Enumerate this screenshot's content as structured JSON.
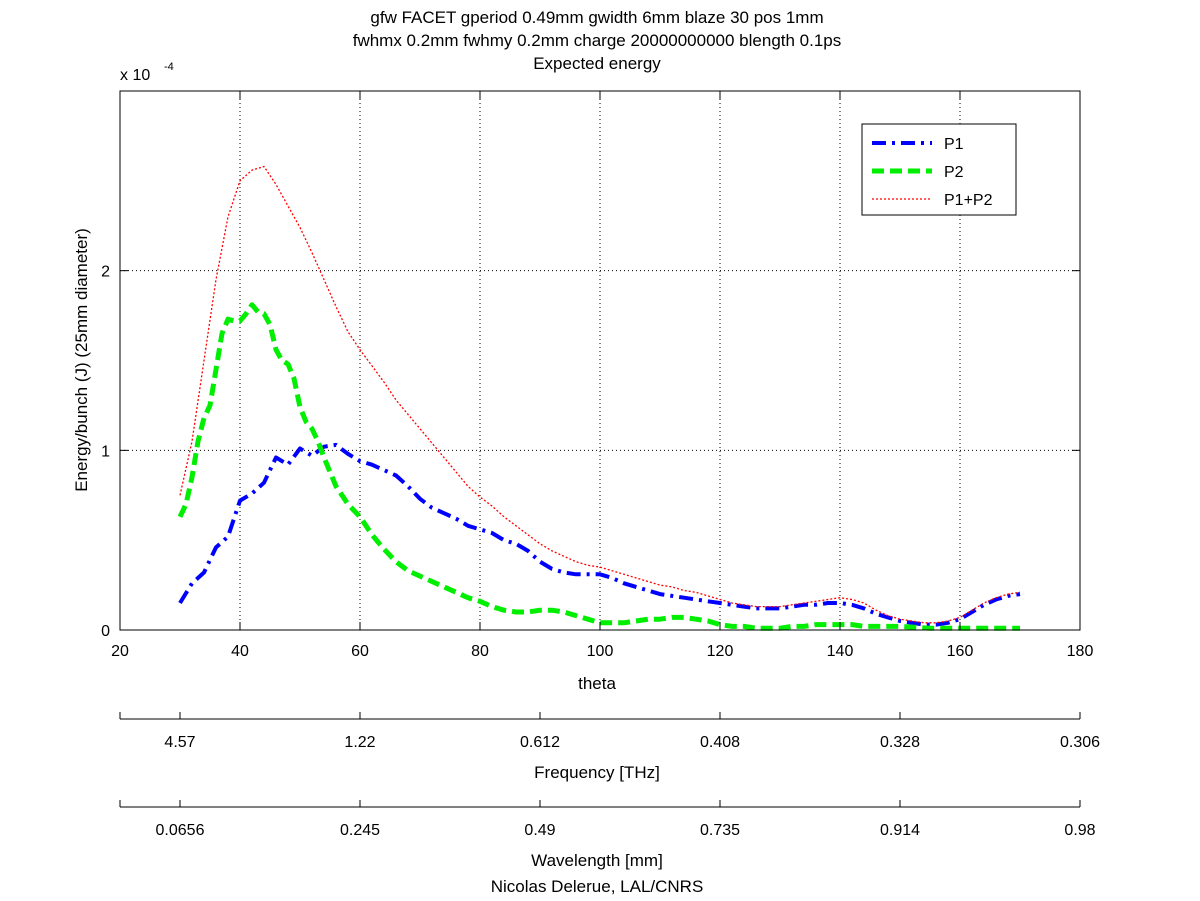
{
  "chart_data": {
    "type": "line",
    "title": [
      "gfw FACET gperiod 0.49mm gwidth 6mm blaze 30 pos 1mm",
      "fwhmx 0.2mm fwhmy 0.2mm charge 20000000000 blength 0.1ps",
      "Expected energy"
    ],
    "xlabel": "theta",
    "ylabel": "Energy/bunch (J) (25mm diameter)",
    "y_multiplier": {
      "base": "x 10",
      "exponent": "-4"
    },
    "xlim": [
      20,
      180
    ],
    "ylim": [
      0,
      3
    ],
    "xticks": [
      20,
      40,
      60,
      80,
      100,
      120,
      140,
      160,
      180
    ],
    "yticks": [
      0,
      1,
      2
    ],
    "grid": true,
    "legend_position": "top-right",
    "series": [
      {
        "name": "P1",
        "color": "#0000ff",
        "style": "dashdot",
        "x": [
          30,
          32,
          34,
          36,
          38,
          40,
          42,
          44,
          46,
          48,
          50,
          52,
          54,
          56,
          58,
          60,
          62,
          64,
          66,
          68,
          70,
          72,
          74,
          76,
          78,
          80,
          82,
          84,
          86,
          88,
          90,
          92,
          94,
          96,
          98,
          100,
          102,
          104,
          106,
          108,
          110,
          112,
          114,
          116,
          118,
          120,
          122,
          124,
          126,
          128,
          130,
          132,
          134,
          136,
          138,
          140,
          142,
          144,
          146,
          148,
          150,
          152,
          154,
          156,
          158,
          160,
          162,
          164,
          166,
          168,
          170
        ],
        "y": [
          0.15,
          0.26,
          0.32,
          0.46,
          0.52,
          0.72,
          0.76,
          0.82,
          0.96,
          0.92,
          1.01,
          0.97,
          1.02,
          1.03,
          0.98,
          0.94,
          0.92,
          0.89,
          0.86,
          0.8,
          0.73,
          0.68,
          0.65,
          0.62,
          0.58,
          0.56,
          0.54,
          0.5,
          0.48,
          0.44,
          0.38,
          0.34,
          0.32,
          0.31,
          0.31,
          0.31,
          0.29,
          0.26,
          0.24,
          0.22,
          0.2,
          0.19,
          0.18,
          0.17,
          0.16,
          0.15,
          0.14,
          0.13,
          0.12,
          0.12,
          0.12,
          0.13,
          0.14,
          0.14,
          0.15,
          0.15,
          0.14,
          0.12,
          0.09,
          0.07,
          0.05,
          0.04,
          0.03,
          0.03,
          0.04,
          0.06,
          0.1,
          0.14,
          0.17,
          0.19,
          0.2
        ]
      },
      {
        "name": "P2",
        "color": "#00ee00",
        "style": "dashed",
        "x": [
          30,
          31,
          32,
          33,
          34,
          35,
          36,
          37,
          38,
          39,
          40,
          41,
          42,
          43,
          44,
          45,
          46,
          47,
          48,
          49,
          50,
          51,
          52,
          53,
          54,
          55,
          56,
          58,
          60,
          62,
          64,
          66,
          68,
          70,
          72,
          74,
          76,
          78,
          80,
          82,
          84,
          86,
          88,
          90,
          92,
          94,
          96,
          98,
          100,
          102,
          104,
          106,
          108,
          110,
          112,
          114,
          116,
          118,
          120,
          122,
          124,
          126,
          128,
          130,
          132,
          134,
          136,
          138,
          140,
          142,
          144,
          146,
          148,
          150,
          155,
          160,
          165,
          170
        ],
        "y": [
          0.63,
          0.7,
          0.85,
          1.05,
          1.18,
          1.25,
          1.45,
          1.65,
          1.73,
          1.72,
          1.72,
          1.76,
          1.81,
          1.77,
          1.76,
          1.7,
          1.56,
          1.5,
          1.48,
          1.4,
          1.24,
          1.16,
          1.12,
          1.05,
          0.96,
          0.88,
          0.8,
          0.7,
          0.63,
          0.53,
          0.45,
          0.38,
          0.33,
          0.3,
          0.27,
          0.24,
          0.21,
          0.18,
          0.16,
          0.13,
          0.11,
          0.1,
          0.1,
          0.11,
          0.11,
          0.1,
          0.08,
          0.06,
          0.04,
          0.04,
          0.04,
          0.05,
          0.06,
          0.06,
          0.07,
          0.07,
          0.06,
          0.05,
          0.03,
          0.02,
          0.02,
          0.01,
          0.01,
          0.01,
          0.02,
          0.02,
          0.03,
          0.03,
          0.03,
          0.03,
          0.02,
          0.02,
          0.02,
          0.02,
          0.01,
          0.01,
          0.01,
          0.01
        ]
      },
      {
        "name": "P1+P2",
        "color": "#ff0000",
        "style": "dotted",
        "x": [
          30,
          32,
          34,
          36,
          38,
          40,
          42,
          44,
          46,
          48,
          50,
          52,
          54,
          56,
          58,
          60,
          62,
          64,
          66,
          68,
          70,
          72,
          74,
          76,
          78,
          80,
          82,
          84,
          86,
          88,
          90,
          92,
          94,
          96,
          98,
          100,
          102,
          104,
          106,
          108,
          110,
          112,
          114,
          116,
          118,
          120,
          122,
          124,
          126,
          128,
          130,
          132,
          134,
          136,
          138,
          140,
          142,
          144,
          146,
          148,
          150,
          152,
          154,
          156,
          158,
          160,
          162,
          164,
          166,
          168,
          170
        ],
        "y": [
          0.75,
          1.05,
          1.5,
          1.95,
          2.3,
          2.5,
          2.56,
          2.58,
          2.48,
          2.36,
          2.24,
          2.1,
          1.95,
          1.8,
          1.66,
          1.56,
          1.47,
          1.38,
          1.28,
          1.2,
          1.12,
          1.04,
          0.96,
          0.88,
          0.8,
          0.74,
          0.69,
          0.63,
          0.58,
          0.53,
          0.48,
          0.44,
          0.41,
          0.38,
          0.36,
          0.35,
          0.33,
          0.31,
          0.29,
          0.27,
          0.25,
          0.24,
          0.22,
          0.21,
          0.19,
          0.17,
          0.15,
          0.14,
          0.13,
          0.13,
          0.13,
          0.14,
          0.15,
          0.16,
          0.17,
          0.18,
          0.17,
          0.15,
          0.11,
          0.08,
          0.06,
          0.05,
          0.04,
          0.04,
          0.05,
          0.07,
          0.11,
          0.15,
          0.18,
          0.2,
          0.21
        ]
      }
    ],
    "secondary_axes": [
      {
        "label": "Frequency [THz]",
        "tick_labels": [
          "4.57",
          "1.22",
          "0.612",
          "0.408",
          "0.328",
          "0.306"
        ],
        "tick_positions_theta": [
          30,
          60,
          90,
          120,
          150,
          180
        ]
      },
      {
        "label": "Wavelength [mm]",
        "tick_labels": [
          "0.0656",
          "0.245",
          "0.49",
          "0.735",
          "0.914",
          "0.98"
        ],
        "tick_positions_theta": [
          30,
          60,
          90,
          120,
          150,
          180
        ]
      }
    ],
    "credit": "Nicolas Delerue, LAL/CNRS"
  }
}
